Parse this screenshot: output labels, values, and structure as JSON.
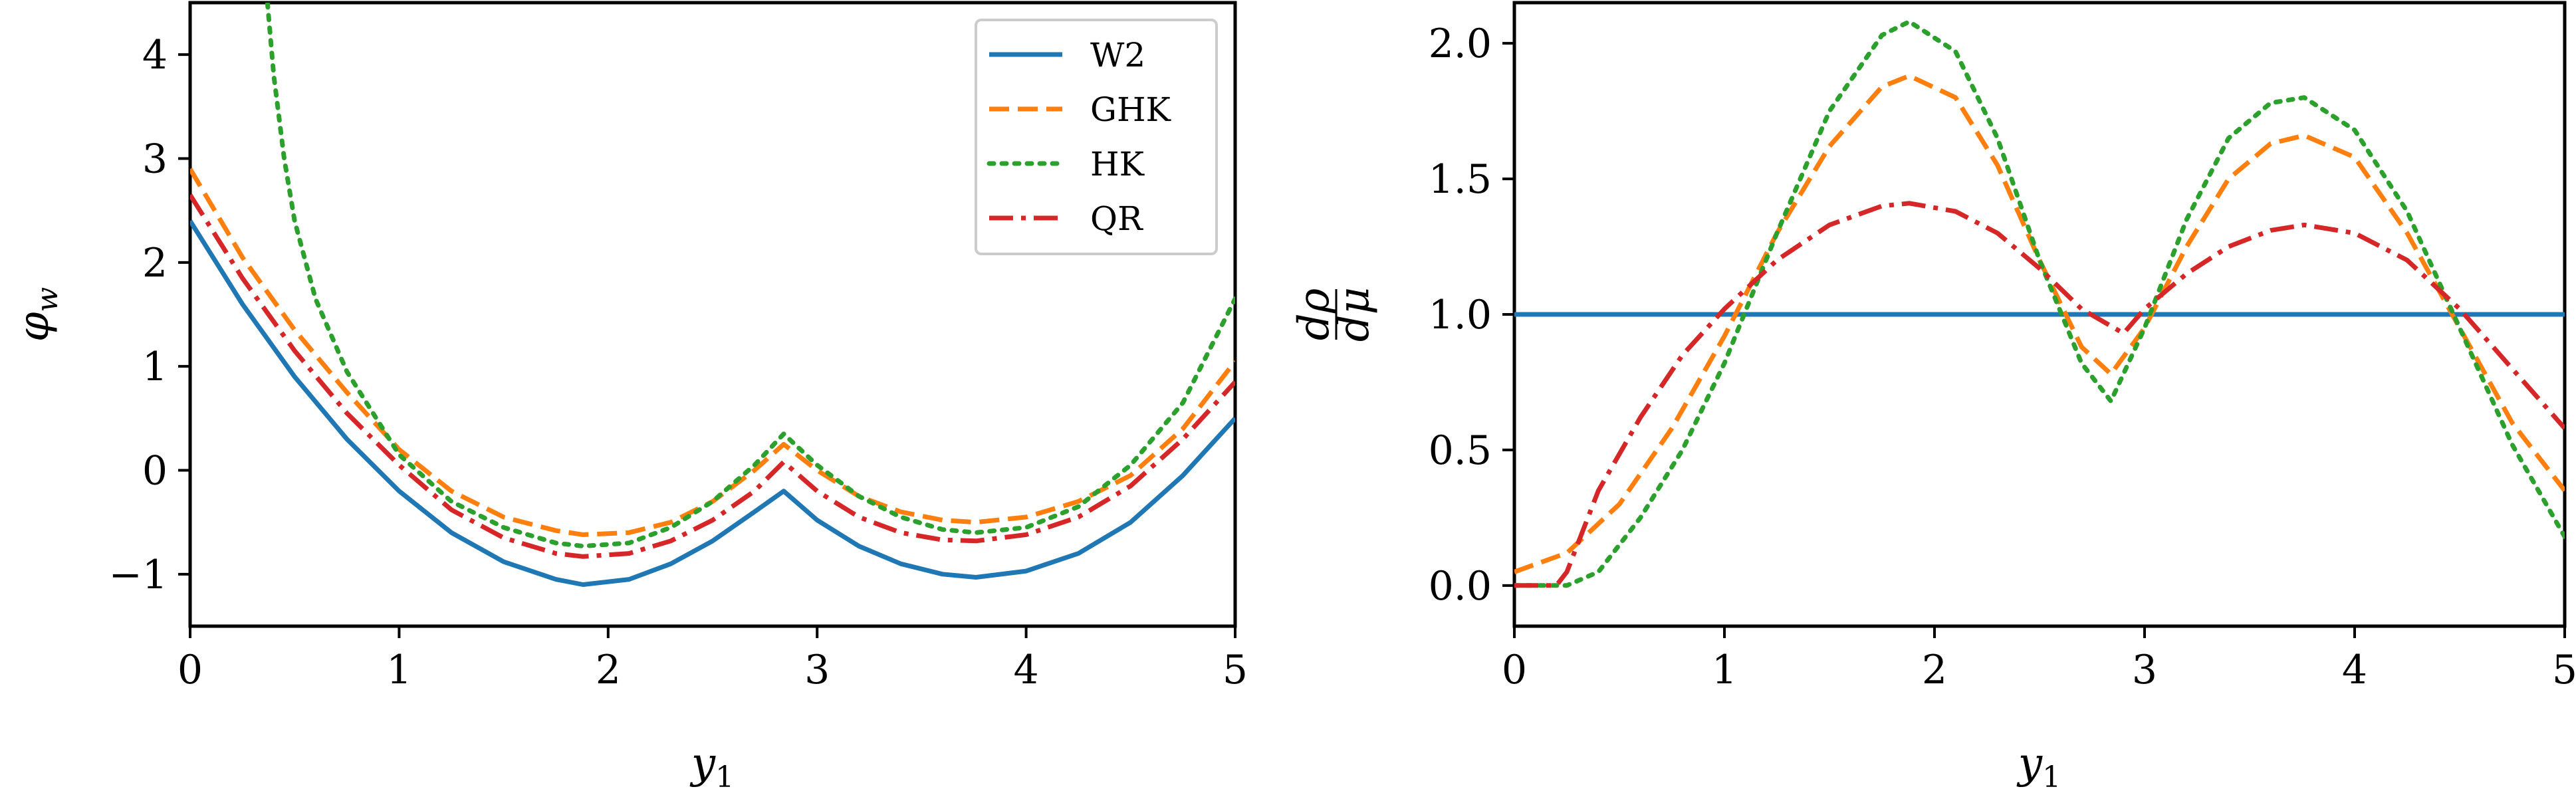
{
  "chart_data": [
    {
      "type": "line",
      "xlabel": "y_1",
      "ylabel": "φ_w",
      "xlim": [
        0,
        5
      ],
      "ylim": [
        -1.5,
        4.5
      ],
      "xticks": [
        "0",
        "1",
        "2",
        "3",
        "4",
        "5"
      ],
      "yticks": [
        "−1",
        "0",
        "1",
        "2",
        "3",
        "4"
      ],
      "legend_position": "top-right",
      "series": [
        {
          "name": "W2",
          "color": "#1f77b4",
          "dash": "solid",
          "x": [
            0,
            0.25,
            0.5,
            0.75,
            1,
            1.25,
            1.5,
            1.75,
            1.88,
            2.1,
            2.3,
            2.5,
            2.7,
            2.84,
            3.0,
            3.2,
            3.4,
            3.6,
            3.76,
            4.0,
            4.25,
            4.5,
            4.75,
            5
          ],
          "y": [
            2.4,
            1.6,
            0.9,
            0.3,
            -0.2,
            -0.6,
            -0.88,
            -1.05,
            -1.1,
            -1.05,
            -0.9,
            -0.68,
            -0.4,
            -0.2,
            -0.48,
            -0.73,
            -0.9,
            -1.0,
            -1.03,
            -0.97,
            -0.8,
            -0.5,
            -0.05,
            0.5
          ]
        },
        {
          "name": "GHK",
          "color": "#ff7f0e",
          "dash": "dashed",
          "x": [
            0,
            0.25,
            0.5,
            0.75,
            1,
            1.25,
            1.5,
            1.75,
            1.88,
            2.1,
            2.3,
            2.5,
            2.7,
            2.84,
            3.0,
            3.2,
            3.4,
            3.6,
            3.76,
            4.0,
            4.25,
            4.5,
            4.75,
            5
          ],
          "y": [
            2.9,
            2.05,
            1.35,
            0.75,
            0.2,
            -0.2,
            -0.45,
            -0.58,
            -0.62,
            -0.6,
            -0.5,
            -0.3,
            0.0,
            0.25,
            0.0,
            -0.25,
            -0.4,
            -0.48,
            -0.5,
            -0.45,
            -0.3,
            -0.05,
            0.4,
            1.05
          ]
        },
        {
          "name": "HK",
          "color": "#2ca02c",
          "dash": "dotted",
          "x": [
            0.37,
            0.4,
            0.45,
            0.5,
            0.6,
            0.75,
            1,
            1.25,
            1.5,
            1.75,
            1.88,
            2.1,
            2.3,
            2.5,
            2.7,
            2.84,
            3.0,
            3.2,
            3.4,
            3.6,
            3.76,
            4.0,
            4.25,
            4.5,
            4.75,
            5
          ],
          "y": [
            4.5,
            3.8,
            3.0,
            2.4,
            1.65,
            0.95,
            0.15,
            -0.3,
            -0.55,
            -0.7,
            -0.73,
            -0.7,
            -0.55,
            -0.3,
            0.05,
            0.35,
            0.05,
            -0.25,
            -0.45,
            -0.57,
            -0.6,
            -0.55,
            -0.35,
            0.05,
            0.65,
            1.65
          ]
        },
        {
          "name": "QR",
          "color": "#d62728",
          "dash": "dashdot",
          "x": [
            0,
            0.25,
            0.5,
            0.75,
            1,
            1.25,
            1.5,
            1.75,
            1.88,
            2.1,
            2.3,
            2.5,
            2.7,
            2.84,
            3.0,
            3.2,
            3.4,
            3.6,
            3.76,
            4.0,
            4.25,
            4.5,
            4.75,
            5
          ],
          "y": [
            2.65,
            1.85,
            1.15,
            0.55,
            0.05,
            -0.38,
            -0.65,
            -0.8,
            -0.83,
            -0.8,
            -0.68,
            -0.48,
            -0.2,
            0.08,
            -0.2,
            -0.45,
            -0.6,
            -0.67,
            -0.68,
            -0.62,
            -0.45,
            -0.15,
            0.3,
            0.85
          ]
        }
      ]
    },
    {
      "type": "line",
      "xlabel": "y_1",
      "ylabel": "dρ/dμ",
      "xlim": [
        0,
        5
      ],
      "ylim": [
        -0.15,
        2.15
      ],
      "xticks": [
        "0",
        "1",
        "2",
        "3",
        "4",
        "5"
      ],
      "yticks": [
        "0.0",
        "0.5",
        "1.0",
        "1.5",
        "2.0"
      ],
      "series": [
        {
          "name": "W2",
          "color": "#1f77b4",
          "dash": "solid",
          "x": [
            0,
            5
          ],
          "y": [
            1.0,
            1.0
          ]
        },
        {
          "name": "GHK",
          "color": "#ff7f0e",
          "dash": "dashed",
          "x": [
            0,
            0.25,
            0.5,
            0.75,
            1,
            1.25,
            1.5,
            1.75,
            1.88,
            2.1,
            2.3,
            2.5,
            2.7,
            2.84,
            3.0,
            3.2,
            3.4,
            3.6,
            3.76,
            4.0,
            4.25,
            4.5,
            4.75,
            5
          ],
          "y": [
            0.05,
            0.12,
            0.3,
            0.58,
            0.92,
            1.3,
            1.62,
            1.84,
            1.88,
            1.8,
            1.55,
            1.2,
            0.88,
            0.78,
            0.95,
            1.25,
            1.5,
            1.63,
            1.66,
            1.58,
            1.3,
            0.95,
            0.6,
            0.35
          ]
        },
        {
          "name": "HK",
          "color": "#2ca02c",
          "dash": "dotted",
          "x": [
            0,
            0.25,
            0.4,
            0.6,
            0.8,
            1,
            1.25,
            1.5,
            1.75,
            1.88,
            2.1,
            2.3,
            2.5,
            2.7,
            2.84,
            3.0,
            3.2,
            3.4,
            3.6,
            3.76,
            4.0,
            4.25,
            4.5,
            4.75,
            5
          ],
          "y": [
            0.0,
            0.0,
            0.05,
            0.25,
            0.5,
            0.82,
            1.3,
            1.75,
            2.03,
            2.08,
            1.97,
            1.65,
            1.2,
            0.82,
            0.68,
            0.95,
            1.35,
            1.65,
            1.78,
            1.8,
            1.68,
            1.38,
            0.95,
            0.52,
            0.18
          ]
        },
        {
          "name": "QR",
          "color": "#d62728",
          "dash": "dashdot",
          "x": [
            0,
            0.2,
            0.25,
            0.4,
            0.6,
            0.8,
            1,
            1.25,
            1.5,
            1.75,
            1.88,
            2.1,
            2.3,
            2.5,
            2.7,
            2.9,
            3.0,
            3.2,
            3.4,
            3.6,
            3.76,
            4.0,
            4.25,
            4.5,
            4.75,
            5
          ],
          "y": [
            0.0,
            0.0,
            0.05,
            0.35,
            0.62,
            0.85,
            1.02,
            1.2,
            1.33,
            1.4,
            1.41,
            1.38,
            1.3,
            1.17,
            1.02,
            0.93,
            1.02,
            1.15,
            1.25,
            1.31,
            1.33,
            1.3,
            1.2,
            1.02,
            0.8,
            0.58
          ]
        }
      ]
    }
  ]
}
